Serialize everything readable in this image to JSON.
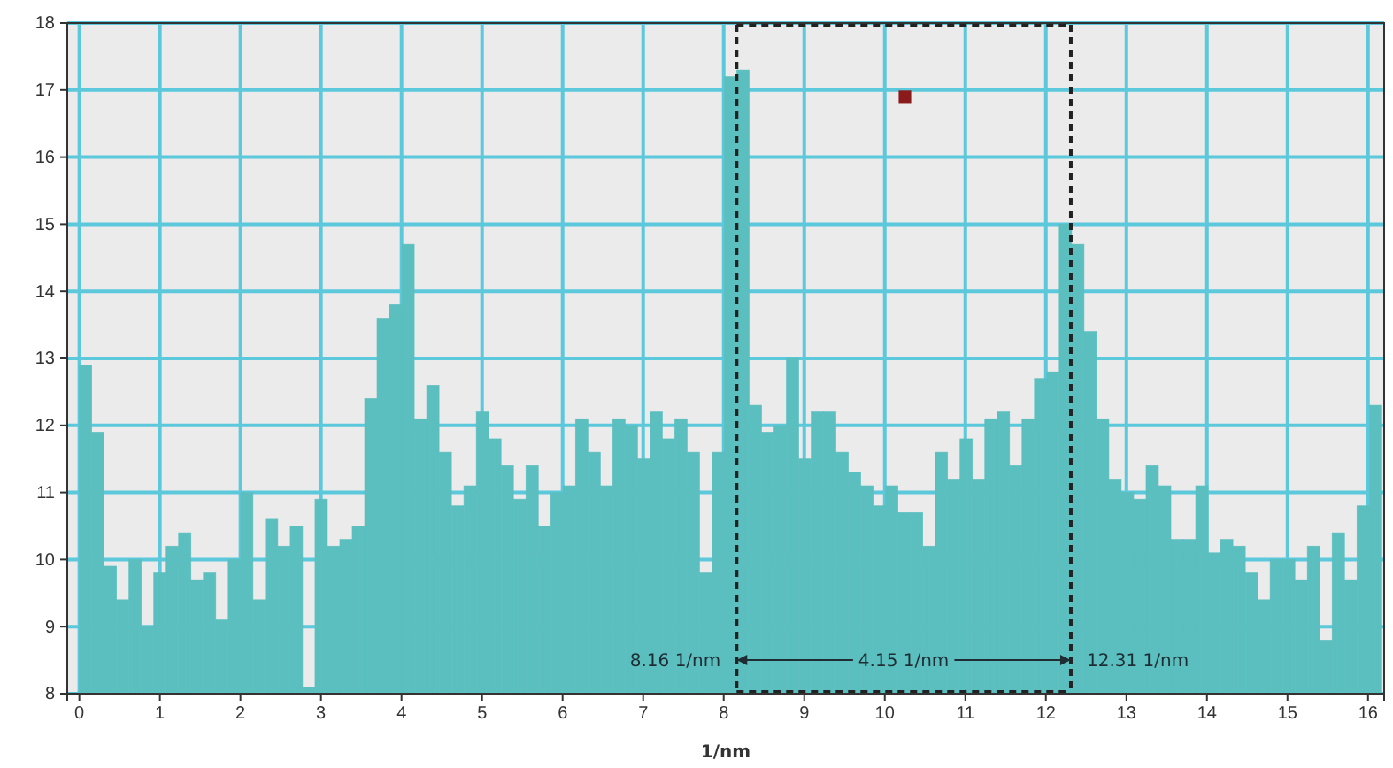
{
  "chart_data": {
    "type": "histogram",
    "xlabel": "1/nm",
    "bins": [
      0,
      0.154,
      0.308,
      0.462,
      0.616,
      0.77,
      0.924,
      1.078,
      1.232,
      1.386,
      1.54,
      1.694,
      1.848,
      2.002,
      2.156,
      2.31,
      2.464,
      2.618,
      2.772,
      2.926,
      3.08,
      3.234,
      3.388,
      3.542,
      3.696,
      3.85,
      4.004,
      4.158,
      4.312,
      4.466,
      4.62,
      4.774,
      4.928,
      5.082,
      5.236,
      5.39,
      5.544,
      5.698,
      5.852,
      6.006,
      6.16,
      6.314,
      6.468,
      6.622,
      6.776,
      6.93,
      7.084,
      7.238,
      7.392,
      7.546,
      7.7,
      7.854,
      8.008,
      8.162,
      8.316,
      8.47,
      8.624,
      8.778,
      8.932,
      9.086,
      9.24,
      9.394,
      9.548,
      9.702,
      9.856,
      10.01,
      10.164,
      10.318,
      10.472,
      10.626,
      10.78,
      10.934,
      11.088,
      11.242,
      11.396,
      11.55,
      11.704,
      11.858,
      12.012,
      12.166,
      12.32,
      12.474,
      12.628,
      12.782,
      12.936,
      13.09,
      13.244,
      13.398,
      13.552,
      13.706,
      13.86,
      14.014,
      14.168,
      14.322,
      14.476,
      14.63,
      14.784,
      14.938,
      15.092,
      15.246,
      15.4,
      15.554,
      15.708,
      15.862,
      16.016,
      16.17
    ],
    "series": [
      {
        "color": "#5bbfbf",
        "values": [
          12.9,
          11.9,
          9.9,
          9.4,
          10.0,
          9.0,
          9.8,
          10.2,
          10.4,
          9.7,
          9.8,
          9.1,
          10.0,
          11.0,
          9.4,
          10.6,
          10.2,
          10.5,
          8.1,
          10.9,
          10.2,
          10.3,
          10.5,
          12.4,
          13.6,
          13.8,
          14.7,
          12.1,
          12.6,
          11.6,
          10.8,
          11.1,
          12.2,
          11.8,
          11.4,
          10.9,
          11.4,
          10.5,
          11.0,
          11.1,
          12.1,
          11.6,
          11.1,
          12.1,
          12.0,
          11.5,
          12.2,
          11.8,
          12.1,
          11.6,
          9.8,
          11.6,
          17.2,
          17.3,
          12.3,
          11.9,
          12.0,
          13.0,
          11.5,
          12.2,
          12.2,
          11.6,
          11.3,
          11.1,
          10.8,
          11.1,
          10.7,
          10.7,
          10.2,
          11.6,
          11.2,
          11.8,
          11.2,
          12.1,
          12.2,
          11.4,
          12.1,
          12.7,
          12.8,
          15.0,
          14.7,
          13.4,
          12.1,
          11.2,
          11.0,
          10.9,
          11.4,
          11.1,
          10.3,
          10.3,
          11.1,
          10.1,
          10.3,
          10.2,
          9.8,
          9.4,
          10.0,
          10.0,
          9.7,
          10.2,
          8.8,
          10.4,
          9.7,
          10.8,
          12.3
        ]
      },
      {
        "type": "scatter",
        "color": "#8b1a1a",
        "x": [
          10.25
        ],
        "values": [
          16.9
        ]
      }
    ],
    "marker": "square",
    "xlim": [
      -0.15,
      16.2
    ],
    "ylim": [
      8,
      18
    ],
    "xticks": [
      0,
      1,
      2,
      3,
      4,
      5,
      6,
      7,
      8,
      9,
      10,
      11,
      12,
      13,
      14,
      15,
      16
    ],
    "yticks": [
      8,
      9,
      10,
      11,
      12,
      13,
      14,
      15,
      16,
      17,
      18
    ],
    "grid": true,
    "ref_lines": [
      {
        "axis": "x",
        "value": 8.16,
        "color": "#222222",
        "line_style": "dashed"
      },
      {
        "axis": "x",
        "value": 12.31,
        "color": "#222222",
        "line_style": "dashed"
      }
    ],
    "annotations": [
      {
        "text": "8.16 1/nm",
        "x": 8.16,
        "y": 8.5
      },
      {
        "text": "4.15 1/nm",
        "x": 10.235,
        "y": 8.5
      },
      {
        "text": "12.31 1/nm",
        "x": 12.31,
        "y": 8.5
      }
    ]
  }
}
